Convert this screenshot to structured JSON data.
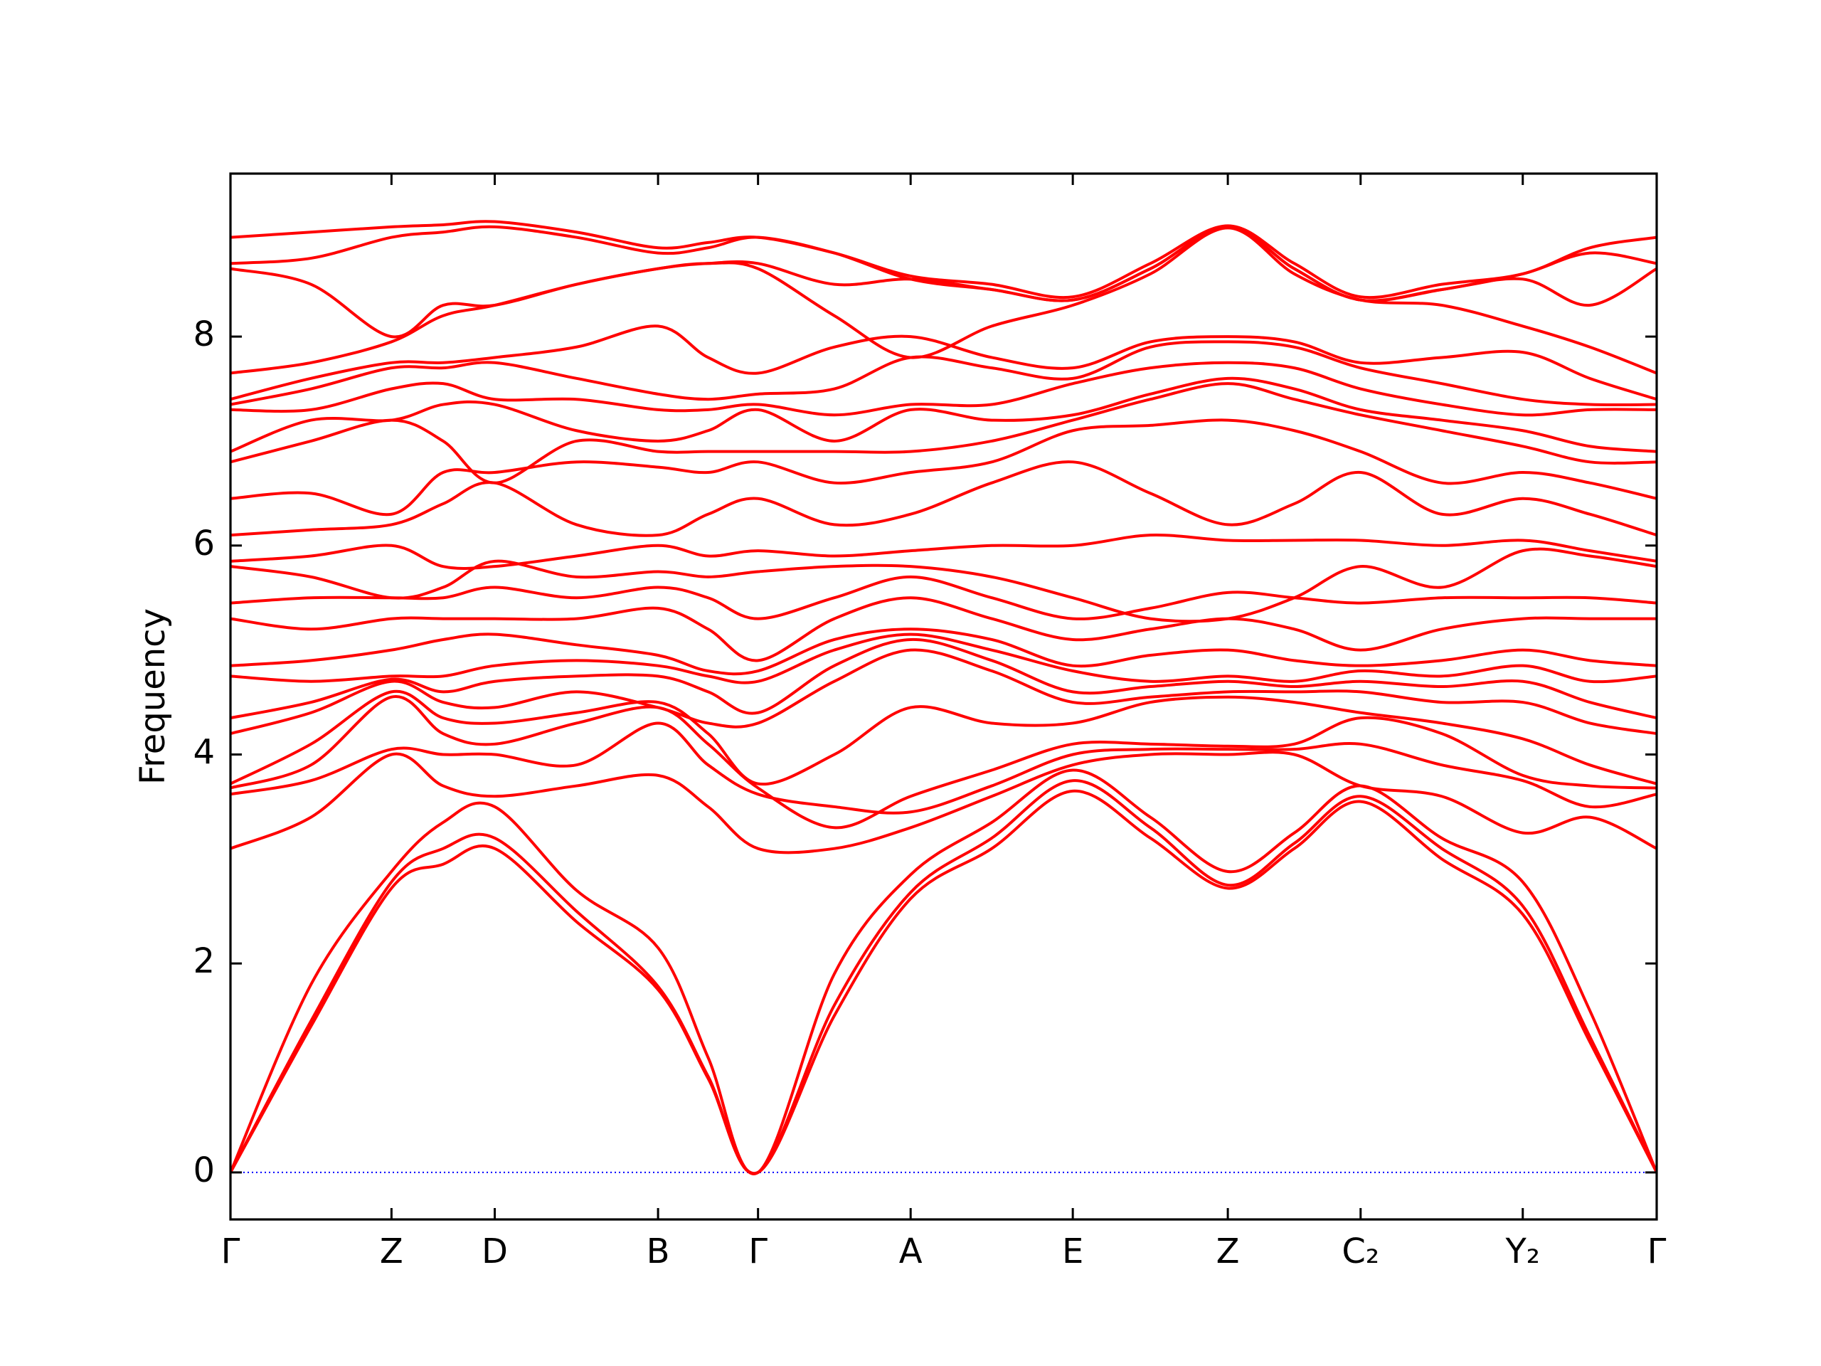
{
  "chart_data": {
    "type": "line",
    "y_label": "Frequency",
    "color": "#ff0000",
    "zero_line": {
      "value": 0,
      "color": "#0000ff"
    },
    "xlim": [
      0,
      1
    ],
    "ylim": [
      -0.45,
      9.56
    ],
    "yticks": [
      0,
      2,
      4,
      6,
      8
    ],
    "xticks": [
      {
        "value": 0,
        "label": "Γ"
      },
      {
        "value": 0.1129,
        "label": "Z"
      },
      {
        "value": 0.1853,
        "label": "D"
      },
      {
        "value": 0.2998,
        "label": "B"
      },
      {
        "value": 0.3699,
        "label": "Γ"
      },
      {
        "value": 0.4769,
        "label": "A"
      },
      {
        "value": 0.5906,
        "label": "E"
      },
      {
        "value": 0.6993,
        "label": "Z"
      },
      {
        "value": 0.7924,
        "label": "C₂"
      },
      {
        "value": 0.9061,
        "label": "Y₂"
      },
      {
        "value": 1,
        "label": "Γ"
      }
    ],
    "x": [
      0,
      0.0565,
      0.1129,
      0.1491,
      0.1853,
      0.2426,
      0.2998,
      0.3349,
      0.3699,
      0.4234,
      0.4769,
      0.5338,
      0.5906,
      0.645,
      0.6993,
      0.7459,
      0.7924,
      0.8493,
      0.9061,
      0.9531,
      1
    ],
    "series": [
      {
        "values": [
          0,
          1.4,
          2.72,
          2.95,
          3.1,
          2.4,
          1.75,
          0.9,
          0,
          1.5,
          2.62,
          3.1,
          3.65,
          3.2,
          2.72,
          3.1,
          3.55,
          3.0,
          2.47,
          1.25,
          0
        ]
      },
      {
        "values": [
          0,
          1.45,
          2.78,
          3.1,
          3.2,
          2.5,
          1.78,
          0.92,
          0,
          1.6,
          2.68,
          3.2,
          3.75,
          3.3,
          2.75,
          3.15,
          3.6,
          3.1,
          2.55,
          1.3,
          0
        ]
      },
      {
        "values": [
          0,
          1.8,
          2.88,
          3.35,
          3.5,
          2.7,
          2.15,
          1.1,
          0,
          1.9,
          2.85,
          3.35,
          3.85,
          3.4,
          2.88,
          3.25,
          3.7,
          3.2,
          2.78,
          1.55,
          0
        ]
      },
      {
        "values": [
          3.1,
          3.4,
          4.0,
          3.7,
          3.6,
          3.7,
          3.8,
          3.5,
          3.1,
          3.1,
          3.3,
          3.6,
          3.9,
          4.0,
          4.0,
          4.0,
          3.7,
          3.6,
          3.25,
          3.4,
          3.1
        ]
      },
      {
        "values": [
          3.62,
          3.75,
          4.05,
          4.0,
          4.0,
          3.9,
          4.3,
          3.9,
          3.62,
          3.5,
          3.45,
          3.7,
          4.0,
          4.05,
          4.05,
          4.05,
          4.1,
          3.9,
          3.75,
          3.5,
          3.62
        ]
      },
      {
        "values": [
          3.68,
          3.9,
          4.55,
          4.2,
          4.1,
          4.3,
          4.45,
          4.1,
          3.68,
          3.3,
          3.6,
          3.85,
          4.1,
          4.1,
          4.08,
          4.1,
          4.35,
          4.2,
          3.8,
          3.7,
          3.68
        ]
      },
      {
        "values": [
          3.72,
          4.1,
          4.6,
          4.35,
          4.3,
          4.4,
          4.5,
          4.2,
          3.72,
          4.0,
          4.45,
          4.3,
          4.3,
          4.5,
          4.55,
          4.5,
          4.4,
          4.3,
          4.15,
          3.9,
          3.72
        ]
      },
      {
        "values": [
          4.2,
          4.4,
          4.7,
          4.5,
          4.45,
          4.6,
          4.45,
          4.3,
          4.3,
          4.7,
          5.0,
          4.8,
          4.5,
          4.55,
          4.6,
          4.6,
          4.6,
          4.5,
          4.5,
          4.3,
          4.2
        ]
      },
      {
        "values": [
          4.35,
          4.5,
          4.72,
          4.6,
          4.7,
          4.75,
          4.75,
          4.6,
          4.4,
          4.85,
          5.1,
          4.9,
          4.6,
          4.65,
          4.7,
          4.65,
          4.7,
          4.65,
          4.7,
          4.5,
          4.35
        ]
      },
      {
        "values": [
          4.75,
          4.7,
          4.75,
          4.75,
          4.85,
          4.9,
          4.85,
          4.75,
          4.7,
          5.0,
          5.15,
          5.0,
          4.8,
          4.7,
          4.75,
          4.7,
          4.8,
          4.75,
          4.85,
          4.7,
          4.75
        ]
      },
      {
        "values": [
          4.85,
          4.9,
          5.0,
          5.1,
          5.15,
          5.05,
          4.95,
          4.8,
          4.8,
          5.1,
          5.2,
          5.1,
          4.85,
          4.95,
          5.0,
          4.9,
          4.85,
          4.9,
          5.0,
          4.9,
          4.85
        ]
      },
      {
        "values": [
          5.3,
          5.2,
          5.3,
          5.3,
          5.3,
          5.3,
          5.4,
          5.2,
          4.9,
          5.3,
          5.5,
          5.3,
          5.1,
          5.2,
          5.3,
          5.2,
          5.0,
          5.2,
          5.3,
          5.3,
          5.3
        ]
      },
      {
        "values": [
          5.45,
          5.5,
          5.5,
          5.5,
          5.6,
          5.5,
          5.6,
          5.5,
          5.3,
          5.5,
          5.7,
          5.5,
          5.3,
          5.4,
          5.55,
          5.5,
          5.45,
          5.5,
          5.5,
          5.5,
          5.45
        ]
      },
      {
        "values": [
          5.8,
          5.7,
          5.5,
          5.6,
          5.85,
          5.7,
          5.75,
          5.7,
          5.75,
          5.8,
          5.8,
          5.7,
          5.5,
          5.3,
          5.3,
          5.5,
          5.8,
          5.6,
          5.95,
          5.9,
          5.8
        ]
      },
      {
        "values": [
          5.85,
          5.9,
          6.0,
          5.8,
          5.8,
          5.9,
          6.0,
          5.9,
          5.95,
          5.9,
          5.95,
          6.0,
          6.0,
          6.1,
          6.05,
          6.05,
          6.05,
          6.0,
          6.05,
          5.95,
          5.85
        ]
      },
      {
        "values": [
          6.1,
          6.15,
          6.2,
          6.4,
          6.6,
          6.2,
          6.1,
          6.3,
          6.45,
          6.2,
          6.3,
          6.6,
          6.8,
          6.5,
          6.2,
          6.4,
          6.7,
          6.3,
          6.45,
          6.3,
          6.1
        ]
      },
      {
        "values": [
          6.45,
          6.5,
          6.3,
          6.7,
          6.7,
          6.8,
          6.75,
          6.7,
          6.8,
          6.6,
          6.7,
          6.8,
          7.1,
          7.15,
          7.2,
          7.1,
          6.9,
          6.6,
          6.7,
          6.6,
          6.45
        ]
      },
      {
        "values": [
          6.8,
          7.0,
          7.2,
          7.0,
          6.6,
          7.0,
          6.9,
          6.9,
          6.9,
          6.9,
          6.9,
          7.0,
          7.2,
          7.4,
          7.55,
          7.4,
          7.25,
          7.1,
          6.95,
          6.8,
          6.8
        ]
      },
      {
        "values": [
          6.9,
          7.2,
          7.2,
          7.35,
          7.35,
          7.1,
          7.0,
          7.1,
          7.3,
          7.0,
          7.3,
          7.2,
          7.25,
          7.45,
          7.6,
          7.5,
          7.3,
          7.2,
          7.1,
          6.95,
          6.9
        ]
      },
      {
        "values": [
          7.3,
          7.3,
          7.5,
          7.55,
          7.4,
          7.4,
          7.3,
          7.3,
          7.35,
          7.25,
          7.35,
          7.35,
          7.55,
          7.7,
          7.75,
          7.7,
          7.5,
          7.35,
          7.25,
          7.3,
          7.3
        ]
      },
      {
        "values": [
          7.35,
          7.5,
          7.7,
          7.7,
          7.75,
          7.6,
          7.45,
          7.4,
          7.45,
          7.5,
          7.8,
          7.7,
          7.6,
          7.9,
          7.95,
          7.9,
          7.7,
          7.55,
          7.4,
          7.35,
          7.35
        ]
      },
      {
        "values": [
          7.4,
          7.6,
          7.75,
          7.75,
          7.8,
          7.9,
          8.1,
          7.8,
          7.65,
          7.9,
          8.0,
          7.8,
          7.7,
          7.95,
          8.0,
          7.95,
          7.75,
          7.8,
          7.85,
          7.6,
          7.4
        ]
      },
      {
        "values": [
          7.65,
          7.75,
          7.95,
          8.2,
          8.3,
          8.5,
          8.65,
          8.7,
          8.65,
          8.2,
          7.8,
          8.1,
          8.3,
          8.6,
          9.04,
          8.6,
          8.35,
          8.3,
          8.1,
          7.9,
          7.65
        ]
      },
      {
        "values": [
          8.65,
          8.5,
          8.0,
          8.3,
          8.3,
          8.5,
          8.65,
          8.7,
          8.7,
          8.5,
          8.55,
          8.45,
          8.35,
          8.65,
          9.05,
          8.65,
          8.35,
          8.45,
          8.55,
          8.3,
          8.65
        ]
      },
      {
        "values": [
          8.7,
          8.75,
          8.95,
          9.0,
          9.05,
          8.95,
          8.8,
          8.85,
          8.95,
          8.8,
          8.55,
          8.45,
          8.35,
          8.65,
          9.05,
          8.65,
          8.35,
          8.45,
          8.6,
          8.8,
          8.7
        ]
      },
      {
        "values": [
          8.95,
          9.0,
          9.05,
          9.07,
          9.1,
          9.0,
          8.85,
          8.9,
          8.95,
          8.8,
          8.58,
          8.5,
          8.38,
          8.7,
          9.06,
          8.7,
          8.38,
          8.5,
          8.6,
          8.85,
          8.95
        ]
      }
    ]
  }
}
